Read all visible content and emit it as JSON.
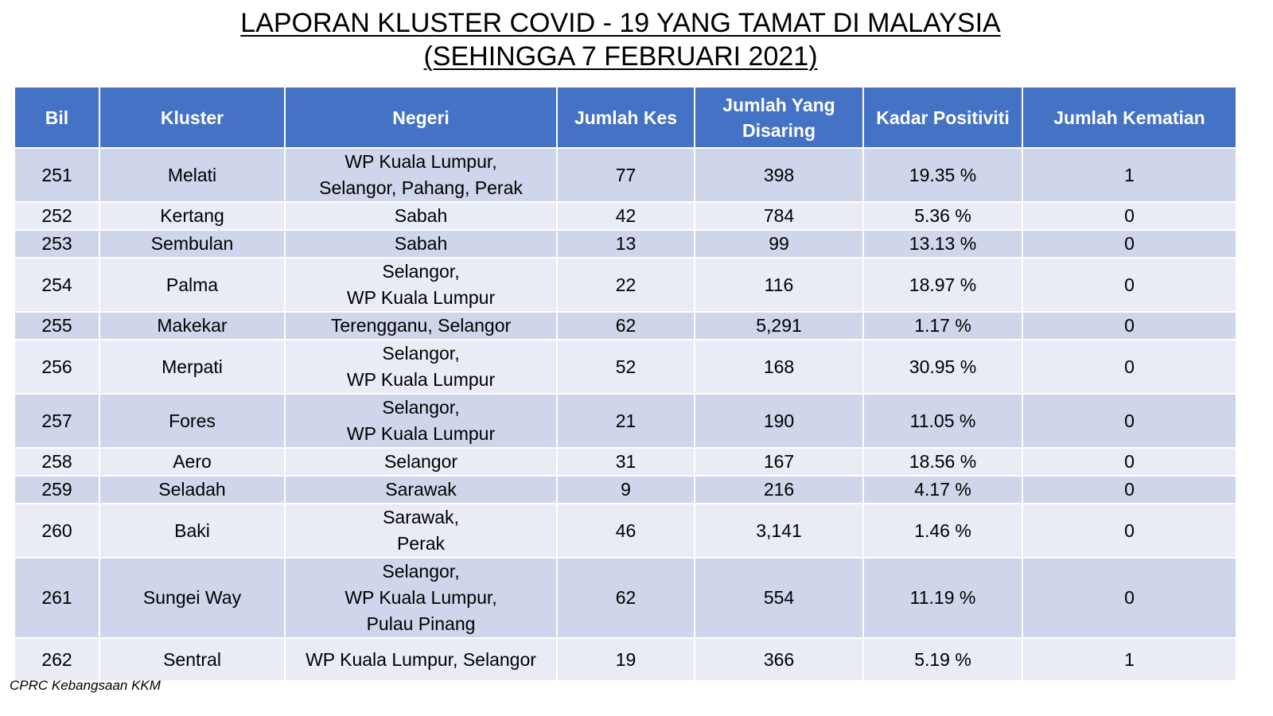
{
  "title": {
    "line1": "LAPORAN KLUSTER COVID - 19 YANG TAMAT DI MALAYSIA",
    "line2": "(SEHINGGA 7 FEBRUARI 2021)"
  },
  "table": {
    "headers": {
      "bil": "Bil",
      "kluster": "Kluster",
      "negeri": "Negeri",
      "jumlah_kes": "Jumlah Kes",
      "jumlah_disaring_1": "Jumlah Yang",
      "jumlah_disaring_2": "Disaring",
      "kadar_positiviti": "Kadar Positiviti",
      "jumlah_kematian": "Jumlah Kematian"
    },
    "rows": [
      {
        "bil": "251",
        "kluster": "Melati",
        "negeri": [
          "WP Kuala Lumpur,",
          "Selangor, Pahang, Perak"
        ],
        "kes": "77",
        "disaring": "398",
        "positiviti": "19.35 %",
        "kematian": "1"
      },
      {
        "bil": "252",
        "kluster": "Kertang",
        "negeri": [
          "Sabah"
        ],
        "kes": "42",
        "disaring": "784",
        "positiviti": "5.36 %",
        "kematian": "0"
      },
      {
        "bil": "253",
        "kluster": "Sembulan",
        "negeri": [
          "Sabah"
        ],
        "kes": "13",
        "disaring": "99",
        "positiviti": "13.13 %",
        "kematian": "0"
      },
      {
        "bil": "254",
        "kluster": "Palma",
        "negeri": [
          "Selangor,",
          "WP Kuala Lumpur"
        ],
        "kes": "22",
        "disaring": "116",
        "positiviti": "18.97 %",
        "kematian": "0"
      },
      {
        "bil": "255",
        "kluster": "Makekar",
        "negeri": [
          "Terengganu, Selangor"
        ],
        "kes": "62",
        "disaring": "5,291",
        "positiviti": "1.17 %",
        "kematian": "0"
      },
      {
        "bil": "256",
        "kluster": "Merpati",
        "negeri": [
          "Selangor,",
          "WP Kuala Lumpur"
        ],
        "kes": "52",
        "disaring": "168",
        "positiviti": "30.95 %",
        "kematian": "0"
      },
      {
        "bil": "257",
        "kluster": "Fores",
        "negeri": [
          "Selangor,",
          "WP Kuala Lumpur"
        ],
        "kes": "21",
        "disaring": "190",
        "positiviti": "11.05 %",
        "kematian": "0"
      },
      {
        "bil": "258",
        "kluster": "Aero",
        "negeri": [
          "Selangor"
        ],
        "kes": "31",
        "disaring": "167",
        "positiviti": "18.56 %",
        "kematian": "0"
      },
      {
        "bil": "259",
        "kluster": "Seladah",
        "negeri": [
          "Sarawak"
        ],
        "kes": "9",
        "disaring": "216",
        "positiviti": "4.17 %",
        "kematian": "0"
      },
      {
        "bil": "260",
        "kluster": "Baki",
        "negeri": [
          "Sarawak,",
          "Perak"
        ],
        "kes": "46",
        "disaring": "3,141",
        "positiviti": "1.46 %",
        "kematian": "0"
      },
      {
        "bil": "261",
        "kluster": "Sungei Way",
        "negeri": [
          "Selangor,",
          "WP Kuala Lumpur,",
          "Pulau Pinang"
        ],
        "kes": "62",
        "disaring": "554",
        "positiviti": "11.19 %",
        "kematian": "0"
      },
      {
        "bil": "262",
        "kluster": "Sentral",
        "negeri": [
          "WP Kuala Lumpur, Selangor"
        ],
        "kes": "19",
        "disaring": "366",
        "positiviti": "5.19 %",
        "kematian": "1"
      }
    ]
  },
  "source": "CPRC Kebangsaan KKM",
  "colors": {
    "header_bg": "#4472c4",
    "row_dark": "#cfd5ea",
    "row_light": "#e9ebf5"
  }
}
